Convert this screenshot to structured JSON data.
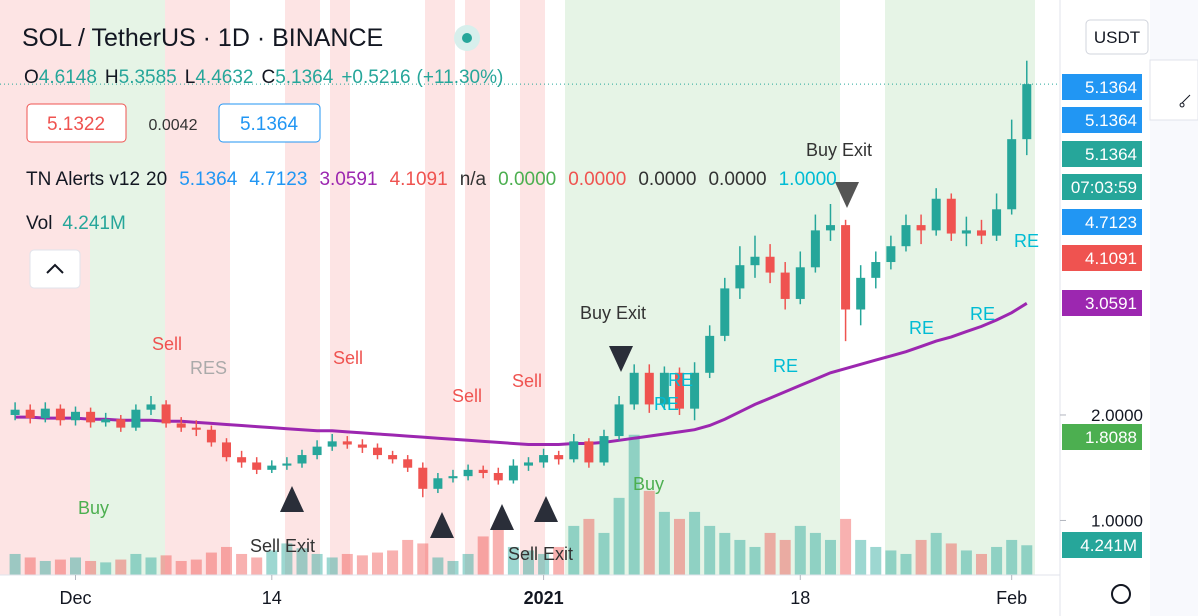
{
  "chart_data": {
    "type": "candlestick",
    "title": "SOL / TetherUS · 1D · BINANCE",
    "ohlc_color": "#26a69a",
    "ohlc_line": [
      {
        "label": "O",
        "value": "4.6148"
      },
      {
        "label": "H",
        "value": "5.3585"
      },
      {
        "label": "L",
        "value": "4.4632"
      },
      {
        "label": "C",
        "value": "5.1364"
      }
    ],
    "change": "+0.5216",
    "change_pct": "(+11.30%)",
    "sell_price": "5.1322",
    "spread": "0.0042",
    "buy_price": "5.1364",
    "indicator": {
      "name": "TN Alerts v12",
      "param": "20",
      "values": [
        {
          "text": "5.1364",
          "color": "#2196f3"
        },
        {
          "text": "4.7123",
          "color": "#2196f3"
        },
        {
          "text": "3.0591",
          "color": "#9c27b0"
        },
        {
          "text": "4.1091",
          "color": "#ef5350"
        },
        {
          "text": "n/a",
          "color": "#333333"
        },
        {
          "text": "0.0000",
          "color": "#4caf50"
        },
        {
          "text": "0.0000",
          "color": "#ef5350"
        },
        {
          "text": "0.0000",
          "color": "#333333"
        },
        {
          "text": "0.0000",
          "color": "#333333"
        },
        {
          "text": "1.0000",
          "color": "#00bcd4"
        }
      ]
    },
    "currency": "USDT",
    "xlim": [
      -1,
      69.2
    ],
    "xticks": [
      {
        "value": 4,
        "label": "Dec"
      },
      {
        "value": 17,
        "label": "14"
      },
      {
        "value": 35,
        "label": "2021"
      },
      {
        "value": 52,
        "label": "18"
      },
      {
        "value": 66,
        "label": "Feb"
      }
    ],
    "ylim": [
      0.483,
      5.934
    ],
    "yticks": [
      {
        "value": 1,
        "label": "1.0000"
      },
      {
        "value": 2,
        "label": "2.0000"
      }
    ],
    "price_labels": [
      {
        "text": "5.1364",
        "color": "#2196f3"
      },
      {
        "text": "5.1364",
        "color": "#2196f3"
      },
      {
        "text": "5.1364",
        "color": "#26a69a"
      },
      {
        "text": "07:03:59",
        "color": "#26a69a"
      },
      {
        "text": "4.7123",
        "color": "#2196f3"
      },
      {
        "text": "4.1091",
        "color": "#ef5350"
      },
      {
        "text": "3.0591",
        "color": "#9c27b0"
      },
      {
        "text": "1.8088",
        "color": "#4caf50"
      },
      {
        "text": "4.241M",
        "color": "#26a69a"
      }
    ],
    "candles": {
      "up_color": "#26a69a",
      "down_color": "#ef5350",
      "values": [
        [
          2.0,
          2.12,
          1.95,
          2.05
        ],
        [
          2.05,
          2.1,
          1.92,
          1.97
        ],
        [
          1.97,
          2.12,
          1.93,
          2.06
        ],
        [
          2.06,
          2.1,
          1.9,
          1.95
        ],
        [
          1.95,
          2.08,
          1.9,
          2.03
        ],
        [
          2.03,
          2.07,
          1.88,
          1.93
        ],
        [
          1.93,
          2.02,
          1.89,
          1.96
        ],
        [
          1.96,
          2.0,
          1.84,
          1.88
        ],
        [
          1.88,
          2.1,
          1.85,
          2.05
        ],
        [
          2.05,
          2.18,
          2.0,
          2.1
        ],
        [
          2.1,
          2.14,
          1.88,
          1.92
        ],
        [
          1.92,
          1.98,
          1.84,
          1.88
        ],
        [
          1.88,
          1.95,
          1.8,
          1.86
        ],
        [
          1.86,
          1.9,
          1.7,
          1.74
        ],
        [
          1.74,
          1.78,
          1.56,
          1.6
        ],
        [
          1.6,
          1.66,
          1.5,
          1.55
        ],
        [
          1.55,
          1.6,
          1.44,
          1.48
        ],
        [
          1.48,
          1.57,
          1.45,
          1.52
        ],
        [
          1.52,
          1.6,
          1.48,
          1.54
        ],
        [
          1.54,
          1.67,
          1.5,
          1.62
        ],
        [
          1.62,
          1.76,
          1.58,
          1.7
        ],
        [
          1.7,
          1.82,
          1.66,
          1.75
        ],
        [
          1.75,
          1.8,
          1.68,
          1.72
        ],
        [
          1.72,
          1.77,
          1.64,
          1.69
        ],
        [
          1.69,
          1.73,
          1.58,
          1.62
        ],
        [
          1.62,
          1.66,
          1.54,
          1.58
        ],
        [
          1.58,
          1.62,
          1.46,
          1.5
        ],
        [
          1.5,
          1.55,
          1.22,
          1.3
        ],
        [
          1.3,
          1.45,
          1.26,
          1.4
        ],
        [
          1.4,
          1.48,
          1.36,
          1.42
        ],
        [
          1.42,
          1.53,
          1.38,
          1.48
        ],
        [
          1.48,
          1.52,
          1.4,
          1.45
        ],
        [
          1.45,
          1.5,
          1.34,
          1.38
        ],
        [
          1.38,
          1.58,
          1.35,
          1.52
        ],
        [
          1.52,
          1.6,
          1.47,
          1.55
        ],
        [
          1.55,
          1.68,
          1.5,
          1.62
        ],
        [
          1.62,
          1.66,
          1.53,
          1.58
        ],
        [
          1.58,
          1.82,
          1.55,
          1.75
        ],
        [
          1.75,
          1.78,
          1.5,
          1.55
        ],
        [
          1.55,
          1.86,
          1.52,
          1.8
        ],
        [
          1.8,
          2.18,
          1.76,
          2.1
        ],
        [
          2.1,
          2.48,
          2.05,
          2.4
        ],
        [
          2.4,
          2.48,
          2.02,
          2.1
        ],
        [
          2.1,
          2.46,
          2.05,
          2.4
        ],
        [
          2.4,
          2.45,
          2.0,
          2.06
        ],
        [
          2.06,
          2.5,
          1.95,
          2.4
        ],
        [
          2.4,
          2.85,
          2.35,
          2.75
        ],
        [
          2.75,
          3.3,
          2.7,
          3.2
        ],
        [
          3.2,
          3.6,
          3.1,
          3.42
        ],
        [
          3.42,
          3.7,
          3.3,
          3.5
        ],
        [
          3.5,
          3.62,
          3.25,
          3.35
        ],
        [
          3.35,
          3.45,
          3.0,
          3.1
        ],
        [
          3.1,
          3.55,
          3.05,
          3.4
        ],
        [
          3.4,
          3.9,
          3.35,
          3.75
        ],
        [
          3.75,
          4.0,
          3.65,
          3.8
        ],
        [
          3.8,
          3.85,
          2.7,
          3.0
        ],
        [
          3.0,
          3.42,
          2.85,
          3.3
        ],
        [
          3.3,
          3.55,
          3.2,
          3.45
        ],
        [
          3.45,
          3.7,
          3.38,
          3.6
        ],
        [
          3.6,
          3.9,
          3.55,
          3.8
        ],
        [
          3.8,
          3.9,
          3.62,
          3.75
        ],
        [
          3.75,
          4.15,
          3.7,
          4.05
        ],
        [
          4.05,
          4.1,
          3.65,
          3.72
        ],
        [
          3.72,
          3.88,
          3.6,
          3.75
        ],
        [
          3.75,
          3.85,
          3.62,
          3.7
        ],
        [
          3.7,
          4.1,
          3.65,
          3.95
        ],
        [
          3.95,
          4.8,
          3.9,
          4.6148
        ],
        [
          4.6148,
          5.3585,
          4.4632,
          5.1364
        ]
      ]
    },
    "volume": {
      "name": "Vol",
      "value_label": "4.241M",
      "vlim": [
        0,
        82000000
      ],
      "values": [
        3000000,
        2500000,
        2000000,
        2200000,
        2500000,
        2000000,
        1800000,
        2200000,
        3000000,
        2500000,
        2800000,
        2000000,
        2200000,
        3200000,
        4000000,
        3000000,
        2500000,
        3500000,
        4500000,
        3800000,
        3000000,
        2500000,
        3000000,
        2800000,
        3200000,
        3500000,
        5000000,
        4500000,
        2500000,
        2000000,
        3000000,
        5500000,
        7000000,
        4000000,
        3500000,
        3000000,
        4000000,
        7000000,
        8000000,
        6000000,
        11000000,
        20000000,
        12000000,
        9000000,
        8000000,
        9000000,
        7000000,
        6000000,
        5000000,
        4000000,
        6000000,
        5000000,
        7000000,
        6000000,
        5000000,
        8000000,
        5000000,
        4000000,
        3500000,
        3000000,
        5000000,
        6000000,
        4500000,
        3500000,
        3000000,
        4000000,
        5000000,
        4241000
      ]
    },
    "ma": {
      "color": "#9c27b0",
      "values": [
        1.98,
        1.98,
        1.97,
        1.97,
        1.97,
        1.96,
        1.96,
        1.95,
        1.95,
        1.95,
        1.94,
        1.94,
        1.93,
        1.92,
        1.91,
        1.9,
        1.89,
        1.88,
        1.87,
        1.86,
        1.85,
        1.85,
        1.84,
        1.83,
        1.82,
        1.81,
        1.8,
        1.79,
        1.78,
        1.77,
        1.76,
        1.75,
        1.74,
        1.73,
        1.72,
        1.72,
        1.72,
        1.73,
        1.73,
        1.74,
        1.76,
        1.78,
        1.8,
        1.82,
        1.84,
        1.86,
        1.9,
        1.96,
        2.03,
        2.1,
        2.16,
        2.22,
        2.28,
        2.34,
        2.4,
        2.44,
        2.48,
        2.52,
        2.56,
        2.6,
        2.65,
        2.7,
        2.74,
        2.79,
        2.84,
        2.9,
        2.97,
        3.0591
      ]
    },
    "annotations": [
      "Sell",
      "RES",
      "Sell",
      "Sell",
      "Sell",
      "Buy",
      "Sell Exit",
      "Sell Exit",
      "Buy Exit",
      "Buy",
      "RE",
      "RE",
      "RE",
      "Buy Exit",
      "RE",
      "RE",
      "RE"
    ]
  }
}
